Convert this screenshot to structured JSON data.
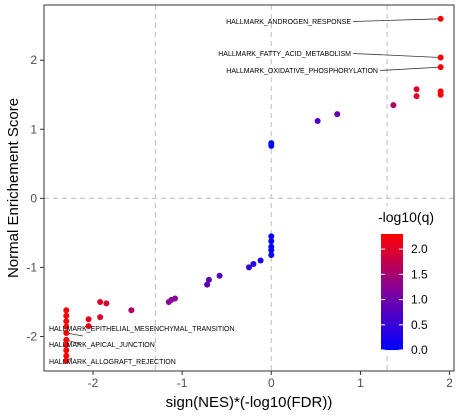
{
  "chart_data": {
    "type": "scatter",
    "xlabel": "sign(NES)*(-log10(FDR))",
    "ylabel": "Normal Enrichement Score",
    "xlim": [
      -2.55,
      2.05
    ],
    "ylim": [
      -2.5,
      2.8
    ],
    "x_ticks": [
      -2,
      -1,
      0,
      1,
      2
    ],
    "y_ticks": [
      -2,
      -1,
      0,
      1,
      2
    ],
    "grid": false,
    "reference_lines": {
      "horizontal": [
        0
      ],
      "vertical": [
        -1.3,
        0,
        1.3
      ],
      "style": "dashed"
    },
    "color_scale": {
      "title": "-log10(q)",
      "low_color": "#0000ff",
      "high_color": "#ff0000",
      "range": [
        0,
        2.3
      ],
      "ticks": [
        "0.0",
        "0.5",
        "1.0",
        "1.5",
        "2.0"
      ]
    },
    "annotations": [
      {
        "label": "HALLMARK_ANDROGEN_RESPONSE",
        "x": 1.9,
        "y": 2.6
      },
      {
        "label": "HALLMARK_FATTY_ACID_METABOLISM",
        "x": 1.9,
        "y": 2.04
      },
      {
        "label": "HALLMARK_OXIDATIVE_PHOSPHORYLATION",
        "x": 1.9,
        "y": 1.9
      },
      {
        "label": "HALLMARK_EPITHELIAL_MESENCHYMAL_TRANSITION",
        "x": -2.3,
        "y": -1.95
      },
      {
        "label": "HALLMARK_APICAL_JUNCTION",
        "x": -2.3,
        "y": -2.05
      },
      {
        "label": "HALLMARK_ALLOGRAFT_REJECTION",
        "x": -2.3,
        "y": -2.35
      }
    ],
    "points": [
      {
        "x": 1.9,
        "y": 2.6,
        "q": 2.3
      },
      {
        "x": 1.9,
        "y": 2.04,
        "q": 2.3
      },
      {
        "x": 1.9,
        "y": 1.9,
        "q": 2.3
      },
      {
        "x": 1.9,
        "y": 1.55,
        "q": 2.3
      },
      {
        "x": 1.9,
        "y": 1.5,
        "q": 2.3
      },
      {
        "x": 1.63,
        "y": 1.58,
        "q": 2.0
      },
      {
        "x": 1.63,
        "y": 1.48,
        "q": 2.0
      },
      {
        "x": 1.37,
        "y": 1.35,
        "q": 1.6
      },
      {
        "x": 0.74,
        "y": 1.22,
        "q": 0.9
      },
      {
        "x": 0.52,
        "y": 1.12,
        "q": 0.7
      },
      {
        "x": 0.0,
        "y": 0.8,
        "q": 0.05
      },
      {
        "x": 0.0,
        "y": 0.76,
        "q": 0.05
      },
      {
        "x": 0.0,
        "y": -0.55,
        "q": 0.05
      },
      {
        "x": 0.0,
        "y": -0.62,
        "q": 0.05
      },
      {
        "x": 0.0,
        "y": -0.7,
        "q": 0.05
      },
      {
        "x": 0.0,
        "y": -0.75,
        "q": 0.05
      },
      {
        "x": 0.0,
        "y": -0.82,
        "q": 0.05
      },
      {
        "x": -0.12,
        "y": -0.9,
        "q": 0.25
      },
      {
        "x": -0.2,
        "y": -0.95,
        "q": 0.35
      },
      {
        "x": -0.25,
        "y": -1.0,
        "q": 0.45
      },
      {
        "x": -0.58,
        "y": -1.12,
        "q": 0.7
      },
      {
        "x": -0.7,
        "y": -1.18,
        "q": 0.8
      },
      {
        "x": -0.72,
        "y": -1.25,
        "q": 0.8
      },
      {
        "x": -1.08,
        "y": -1.45,
        "q": 1.2
      },
      {
        "x": -1.12,
        "y": -1.47,
        "q": 1.2
      },
      {
        "x": -1.15,
        "y": -1.5,
        "q": 1.25
      },
      {
        "x": -1.57,
        "y": -1.62,
        "q": 1.6
      },
      {
        "x": -1.92,
        "y": -1.5,
        "q": 2.0
      },
      {
        "x": -1.85,
        "y": -1.52,
        "q": 1.95
      },
      {
        "x": -1.92,
        "y": -1.72,
        "q": 2.0
      },
      {
        "x": -2.05,
        "y": -1.75,
        "q": 2.1
      },
      {
        "x": -2.05,
        "y": -1.85,
        "q": 2.1
      },
      {
        "x": -2.3,
        "y": -1.62,
        "q": 2.3
      },
      {
        "x": -2.3,
        "y": -1.7,
        "q": 2.3
      },
      {
        "x": -2.3,
        "y": -1.78,
        "q": 2.3
      },
      {
        "x": -2.3,
        "y": -1.86,
        "q": 2.3
      },
      {
        "x": -2.3,
        "y": -1.95,
        "q": 2.3
      },
      {
        "x": -2.3,
        "y": -2.05,
        "q": 2.3
      },
      {
        "x": -2.3,
        "y": -2.12,
        "q": 2.3
      },
      {
        "x": -2.3,
        "y": -2.2,
        "q": 2.3
      },
      {
        "x": -2.3,
        "y": -2.28,
        "q": 2.3
      },
      {
        "x": -2.3,
        "y": -2.35,
        "q": 2.3
      }
    ]
  }
}
